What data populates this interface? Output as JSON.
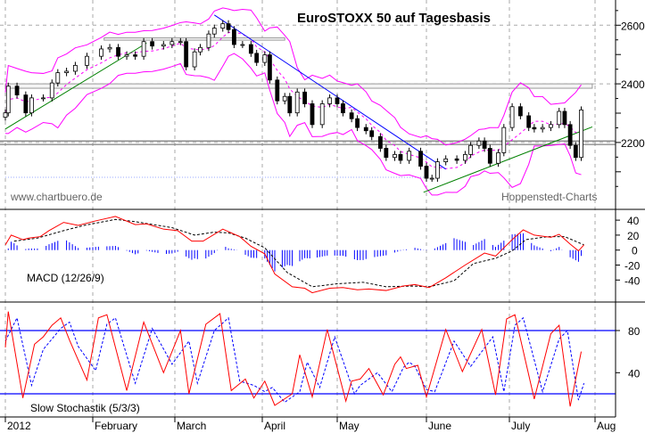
{
  "chart_data": [
    {
      "type": "candlestick",
      "title": "EuroSTOXX 50 auf Tagesbasis",
      "watermark_left": "www.chartbuero.de",
      "watermark_right": "Hoppenstedt-Charts",
      "ylim": [
        2000,
        2660
      ],
      "yticks": [
        2200,
        2400,
        2600
      ],
      "xticks": [
        "2012",
        "February",
        "March",
        "April",
        "May",
        "June",
        "July",
        "Aug"
      ],
      "grid": true,
      "close": [
        [
          "2012-01-02",
          2301
        ],
        [
          "2012-01-03",
          2392
        ],
        [
          "2012-01-06",
          2362
        ],
        [
          "2012-01-09",
          2301
        ],
        [
          "2012-01-11",
          2352
        ],
        [
          "2012-01-15",
          2352
        ],
        [
          "2012-01-18",
          2403
        ],
        [
          "2012-01-20",
          2438
        ],
        [
          "2012-01-23",
          2443
        ],
        [
          "2012-01-26",
          2463
        ],
        [
          "2012-01-30",
          2494
        ],
        [
          "2012-02-04",
          2519
        ],
        [
          "2012-02-07",
          2524
        ],
        [
          "2012-02-10",
          2494
        ],
        [
          "2012-02-13",
          2499
        ],
        [
          "2012-02-16",
          2494
        ],
        [
          "2012-02-19",
          2544
        ],
        [
          "2012-02-22",
          2529
        ],
        [
          "2012-02-26",
          2534
        ],
        [
          "2012-02-29",
          2544
        ],
        [
          "2012-03-03",
          2544
        ],
        [
          "2012-03-05",
          2458
        ],
        [
          "2012-03-08",
          2509
        ],
        [
          "2012-03-10",
          2524
        ],
        [
          "2012-03-13",
          2570
        ],
        [
          "2012-03-15",
          2590
        ],
        [
          "2012-03-18",
          2605
        ],
        [
          "2012-03-20",
          2585
        ],
        [
          "2012-03-22",
          2534
        ],
        [
          "2012-03-25",
          2534
        ],
        [
          "2012-03-28",
          2504
        ],
        [
          "2012-03-30",
          2473
        ],
        [
          "2012-04-02",
          2499
        ],
        [
          "2012-04-04",
          2413
        ],
        [
          "2012-04-07",
          2342
        ],
        [
          "2012-04-10",
          2357
        ],
        [
          "2012-04-12",
          2301
        ],
        [
          "2012-04-15",
          2372
        ],
        [
          "2012-04-18",
          2332
        ],
        [
          "2012-04-21",
          2261
        ],
        [
          "2012-04-25",
          2332
        ],
        [
          "2012-04-28",
          2352
        ],
        [
          "2012-05-01",
          2332
        ],
        [
          "2012-05-03",
          2301
        ],
        [
          "2012-05-06",
          2281
        ],
        [
          "2012-05-08",
          2251
        ],
        [
          "2012-05-11",
          2240
        ],
        [
          "2012-05-13",
          2220
        ],
        [
          "2012-05-16",
          2180
        ],
        [
          "2012-05-18",
          2149
        ],
        [
          "2012-05-21",
          2159
        ],
        [
          "2012-05-23",
          2139
        ],
        [
          "2012-05-26",
          2170
        ],
        [
          "2012-05-30",
          2119
        ],
        [
          "2012-06-01",
          2078
        ],
        [
          "2012-06-03",
          2078
        ],
        [
          "2012-06-05",
          2134
        ],
        [
          "2012-06-08",
          2144
        ],
        [
          "2012-06-12",
          2139
        ],
        [
          "2012-06-15",
          2159
        ],
        [
          "2012-06-17",
          2190
        ],
        [
          "2012-06-20",
          2205
        ],
        [
          "2012-06-22",
          2180
        ],
        [
          "2012-06-24",
          2129
        ],
        [
          "2012-06-27",
          2165
        ],
        [
          "2012-06-29",
          2251
        ],
        [
          "2012-07-02",
          2322
        ],
        [
          "2012-07-05",
          2291
        ],
        [
          "2012-07-08",
          2251
        ],
        [
          "2012-07-10",
          2246
        ],
        [
          "2012-07-13",
          2251
        ],
        [
          "2012-07-16",
          2261
        ],
        [
          "2012-07-19",
          2306
        ],
        [
          "2012-07-21",
          2261
        ],
        [
          "2012-07-23",
          2190
        ],
        [
          "2012-07-25",
          2149
        ],
        [
          "2012-07-27",
          2311
        ]
      ],
      "bollinger_color": "#ff00ff",
      "trendlines": [
        {
          "color": "#008000",
          "from": [
            "2012-01-02",
            2246
          ],
          "to": [
            "2012-02-20",
            2539
          ]
        },
        {
          "color": "#0000ff",
          "from": [
            "2012-03-15",
            2635
          ],
          "to": [
            "2012-06-08",
            2109
          ]
        },
        {
          "color": "#008000",
          "from": [
            "2012-05-31",
            2030
          ],
          "to": [
            "2012-07-31",
            2253
          ]
        }
      ],
      "horizontal_levels": [
        2205,
        2193
      ],
      "zones": [
        {
          "from": "2012-01-02",
          "to": "2012-07-31",
          "low": 2385,
          "high": 2400
        },
        {
          "from": "2012-02-05",
          "to": "2012-04-10",
          "low": 2549,
          "high": 2557
        }
      ],
      "support_dotted": {
        "from": "2012-01-02",
        "to": "2012-06-01",
        "level": 2081
      }
    },
    {
      "type": "line",
      "label": "MACD (12/26/9)",
      "ylim": [
        -60,
        50
      ],
      "yticks": [
        40,
        20,
        0,
        -20,
        -40
      ],
      "macd_color": "#ff0000",
      "signal_color": "#000000",
      "histogram_color": "#0000ff",
      "macd": [
        [
          "2012-01-02",
          7
        ],
        [
          "2012-01-04",
          20
        ],
        [
          "2012-01-08",
          14
        ],
        [
          "2012-01-10",
          16
        ],
        [
          "2012-01-14",
          18
        ],
        [
          "2012-01-17",
          26
        ],
        [
          "2012-01-22",
          37
        ],
        [
          "2012-01-27",
          33
        ],
        [
          "2012-02-02",
          39
        ],
        [
          "2012-02-09",
          45
        ],
        [
          "2012-02-16",
          34
        ],
        [
          "2012-02-20",
          35
        ],
        [
          "2012-02-26",
          28
        ],
        [
          "2012-03-02",
          26
        ],
        [
          "2012-03-07",
          12
        ],
        [
          "2012-03-11",
          12
        ],
        [
          "2012-03-18",
          28
        ],
        [
          "2012-03-24",
          18
        ],
        [
          "2012-03-28",
          5
        ],
        [
          "2012-04-02",
          -5
        ],
        [
          "2012-04-06",
          -32
        ],
        [
          "2012-04-13",
          -49
        ],
        [
          "2012-04-18",
          -51
        ],
        [
          "2012-04-21",
          -57
        ],
        [
          "2012-04-28",
          -51
        ],
        [
          "2012-05-03",
          -50
        ],
        [
          "2012-05-08",
          -53
        ],
        [
          "2012-05-12",
          -52
        ],
        [
          "2012-05-18",
          -54
        ],
        [
          "2012-05-24",
          -48
        ],
        [
          "2012-05-28",
          -46
        ],
        [
          "2012-06-02",
          -50
        ],
        [
          "2012-06-08",
          -37
        ],
        [
          "2012-06-15",
          -20
        ],
        [
          "2012-06-22",
          -4
        ],
        [
          "2012-06-26",
          -8
        ],
        [
          "2012-07-02",
          14
        ],
        [
          "2012-07-06",
          27
        ],
        [
          "2012-07-10",
          20
        ],
        [
          "2012-07-16",
          17
        ],
        [
          "2012-07-19",
          21
        ],
        [
          "2012-07-23",
          8
        ],
        [
          "2012-07-26",
          -1
        ],
        [
          "2012-07-28",
          7
        ]
      ],
      "signal": [
        [
          "2012-01-05",
          12
        ],
        [
          "2012-01-13",
          16
        ],
        [
          "2012-01-22",
          26
        ],
        [
          "2012-01-29",
          33
        ],
        [
          "2012-02-09",
          41
        ],
        [
          "2012-02-16",
          38
        ],
        [
          "2012-02-29",
          30
        ],
        [
          "2012-03-08",
          20
        ],
        [
          "2012-03-15",
          24
        ],
        [
          "2012-03-20",
          23
        ],
        [
          "2012-03-26",
          16
        ],
        [
          "2012-04-02",
          3
        ],
        [
          "2012-04-11",
          -30
        ],
        [
          "2012-04-21",
          -49
        ],
        [
          "2012-05-01",
          -45
        ],
        [
          "2012-05-10",
          -43
        ],
        [
          "2012-05-18",
          -49
        ],
        [
          "2012-05-27",
          -48
        ],
        [
          "2012-06-02",
          -49
        ],
        [
          "2012-06-11",
          -41
        ],
        [
          "2012-06-18",
          -18
        ],
        [
          "2012-06-26",
          -11
        ],
        [
          "2012-07-02",
          -1
        ],
        [
          "2012-07-07",
          14
        ],
        [
          "2012-07-15",
          18
        ],
        [
          "2012-07-21",
          18
        ],
        [
          "2012-07-28",
          7
        ]
      ]
    },
    {
      "type": "line",
      "label": "Slow Stochastik (5/3/3)",
      "ylim": [
        0,
        100
      ],
      "yticks": [
        80,
        40
      ],
      "levels": [
        80,
        20
      ],
      "level_color": "#0000ff",
      "k_color": "#ff0000",
      "d_color": "#0000ff",
      "k": [
        [
          "2012-01-02",
          64
        ],
        [
          "2012-01-03",
          98
        ],
        [
          "2012-01-08",
          16
        ],
        [
          "2012-01-12",
          67
        ],
        [
          "2012-01-15",
          74
        ],
        [
          "2012-01-18",
          85
        ],
        [
          "2012-01-21",
          92
        ],
        [
          "2012-01-24",
          71
        ],
        [
          "2012-01-30",
          33
        ],
        [
          "2012-02-03",
          92
        ],
        [
          "2012-02-06",
          95
        ],
        [
          "2012-02-13",
          23
        ],
        [
          "2012-02-19",
          88
        ],
        [
          "2012-02-26",
          40
        ],
        [
          "2012-03-03",
          80
        ],
        [
          "2012-03-06",
          20
        ],
        [
          "2012-03-12",
          86
        ],
        [
          "2012-03-17",
          96
        ],
        [
          "2012-03-21",
          23
        ],
        [
          "2012-03-26",
          34
        ],
        [
          "2012-03-29",
          16
        ],
        [
          "2012-04-02",
          32
        ],
        [
          "2012-04-06",
          9
        ],
        [
          "2012-04-13",
          20
        ],
        [
          "2012-04-16",
          57
        ],
        [
          "2012-04-21",
          17
        ],
        [
          "2012-04-27",
          81
        ],
        [
          "2012-05-04",
          13
        ],
        [
          "2012-05-06",
          32
        ],
        [
          "2012-05-09",
          34
        ],
        [
          "2012-05-12",
          44
        ],
        [
          "2012-05-17",
          19
        ],
        [
          "2012-05-21",
          48
        ],
        [
          "2012-05-23",
          55
        ],
        [
          "2012-05-25",
          44
        ],
        [
          "2012-05-29",
          47
        ],
        [
          "2012-06-01",
          17
        ],
        [
          "2012-06-08",
          81
        ],
        [
          "2012-06-14",
          41
        ],
        [
          "2012-06-21",
          81
        ],
        [
          "2012-06-26",
          19
        ],
        [
          "2012-06-30",
          91
        ],
        [
          "2012-07-03",
          95
        ],
        [
          "2012-07-10",
          15
        ],
        [
          "2012-07-16",
          77
        ],
        [
          "2012-07-19",
          85
        ],
        [
          "2012-07-23",
          8
        ],
        [
          "2012-07-27",
          60
        ]
      ],
      "d": [
        [
          "2012-01-02",
          70
        ],
        [
          "2012-01-06",
          92
        ],
        [
          "2012-01-11",
          28
        ],
        [
          "2012-01-15",
          62
        ],
        [
          "2012-01-18",
          72
        ],
        [
          "2012-01-21",
          82
        ],
        [
          "2012-01-24",
          88
        ],
        [
          "2012-01-27",
          65
        ],
        [
          "2012-02-02",
          42
        ],
        [
          "2012-02-06",
          86
        ],
        [
          "2012-02-09",
          92
        ],
        [
          "2012-02-16",
          30
        ],
        [
          "2012-02-22",
          82
        ],
        [
          "2012-02-29",
          48
        ],
        [
          "2012-03-06",
          70
        ],
        [
          "2012-03-09",
          30
        ],
        [
          "2012-03-15",
          80
        ],
        [
          "2012-03-20",
          92
        ],
        [
          "2012-03-24",
          32
        ],
        [
          "2012-03-29",
          28
        ],
        [
          "2012-04-02",
          22
        ],
        [
          "2012-04-05",
          26
        ],
        [
          "2012-04-10",
          12
        ],
        [
          "2012-04-16",
          22
        ],
        [
          "2012-04-19",
          50
        ],
        [
          "2012-04-24",
          26
        ],
        [
          "2012-04-30",
          74
        ],
        [
          "2012-05-07",
          20
        ],
        [
          "2012-05-09",
          28
        ],
        [
          "2012-05-12",
          34
        ],
        [
          "2012-05-15",
          40
        ],
        [
          "2012-05-20",
          22
        ],
        [
          "2012-05-24",
          45
        ],
        [
          "2012-05-26",
          50
        ],
        [
          "2012-05-28",
          46
        ],
        [
          "2012-06-01",
          24
        ],
        [
          "2012-06-04",
          22
        ],
        [
          "2012-06-11",
          70
        ],
        [
          "2012-06-17",
          46
        ],
        [
          "2012-06-25",
          74
        ],
        [
          "2012-06-29",
          22
        ],
        [
          "2012-07-03",
          85
        ],
        [
          "2012-07-06",
          92
        ],
        [
          "2012-07-13",
          22
        ],
        [
          "2012-07-19",
          72
        ],
        [
          "2012-07-22",
          80
        ],
        [
          "2012-07-26",
          14
        ],
        [
          "2012-07-28",
          30
        ]
      ]
    }
  ]
}
